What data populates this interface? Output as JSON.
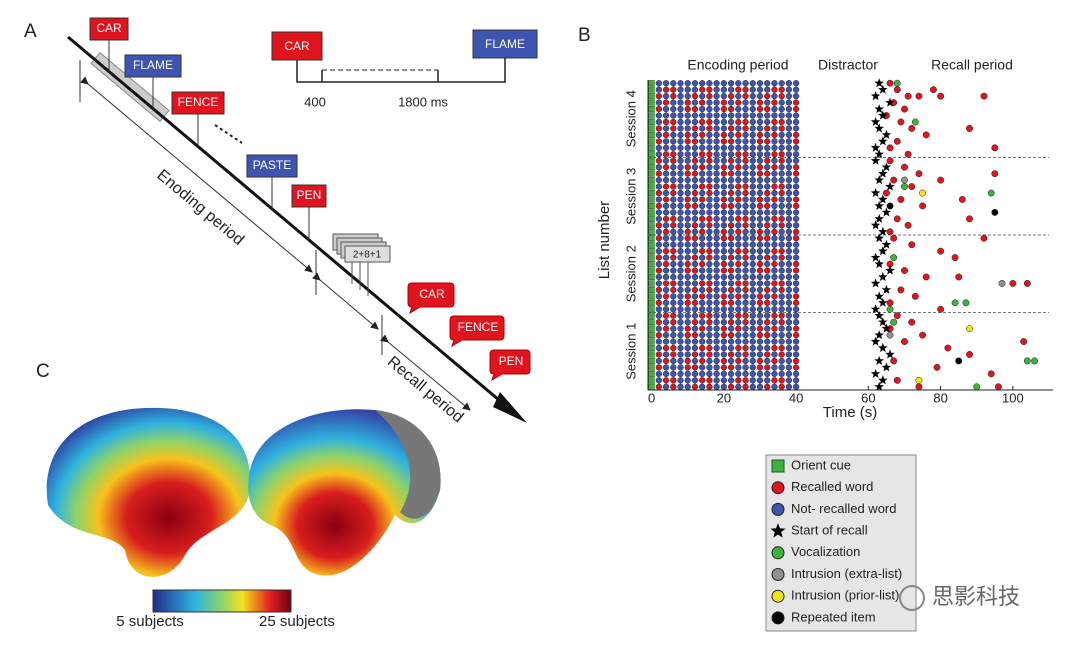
{
  "panel_a": {
    "label": "A",
    "timeline": {
      "word_1": "CAR",
      "word_2": "FLAME",
      "onset": "400",
      "interval": "1800 ms"
    },
    "encoding_words": [
      "CAR",
      "FLAME",
      "FENCE",
      "PASTE",
      "PEN"
    ],
    "encoding_label": "Enoding period",
    "distractor": "2+8+1",
    "recall_words": [
      "CAR",
      "FENCE",
      "PEN"
    ],
    "recall_label": "Recall period"
  },
  "panel_c": {
    "label": "C",
    "colorbar_low": "5 subjects",
    "colorbar_high": "25 subjects"
  },
  "watermark": "思影科技",
  "chart_data": {
    "type": "scatter",
    "panel_label": "B",
    "period_labels": [
      "Encoding period",
      "Distractor",
      "Recall period"
    ],
    "ylabel": "List number",
    "sessions": [
      "Session 1",
      "Session 2",
      "Session 3",
      "Session 4"
    ],
    "xlabel": "Time (s)",
    "xlim": [
      -1,
      110
    ],
    "xticks": [
      0,
      20,
      40,
      60,
      80,
      100
    ],
    "ylim": [
      0.5,
      48.5
    ],
    "series": [
      {
        "name": "Orient cue",
        "color": "#3cb43c",
        "marker": "square",
        "x": [
          0,
          0,
          0,
          0,
          0,
          0,
          0,
          0,
          0,
          0,
          0,
          0,
          0,
          0,
          0,
          0,
          0,
          0,
          0,
          0,
          0,
          0,
          0,
          0,
          0,
          0,
          0,
          0,
          0,
          0,
          0,
          0,
          0,
          0,
          0,
          0,
          0,
          0,
          0,
          0,
          0,
          0,
          0,
          0,
          0,
          0,
          0,
          0
        ],
        "values": [
          1,
          2,
          3,
          4,
          5,
          6,
          7,
          8,
          9,
          10,
          11,
          12,
          13,
          14,
          15,
          16,
          17,
          18,
          19,
          20,
          21,
          22,
          23,
          24,
          25,
          26,
          27,
          28,
          29,
          30,
          31,
          32,
          33,
          34,
          35,
          36,
          37,
          38,
          39,
          40,
          41,
          42,
          43,
          44,
          45,
          46,
          47,
          48
        ]
      },
      {
        "name": "Recalled word",
        "color": "#e0141e",
        "marker": "circle",
        "x": [
          66,
          68,
          71,
          67,
          70,
          74,
          78,
          80,
          65,
          69,
          72,
          76,
          68,
          66,
          71,
          88,
          92,
          95,
          66,
          70,
          74,
          67,
          72,
          65,
          69,
          75,
          80,
          86,
          95,
          68,
          71,
          66,
          88,
          67,
          72,
          80,
          84,
          66,
          70,
          76,
          92,
          85,
          100,
          104,
          69,
          73,
          66,
          80,
          68,
          72,
          66,
          75,
          70,
          82,
          88,
          67,
          79,
          94,
          103,
          68,
          74,
          96
        ],
        "values": [
          48,
          47,
          46,
          45,
          44,
          46,
          47,
          46,
          43,
          42,
          41,
          40,
          39,
          38,
          37,
          41,
          46,
          38,
          36,
          35,
          34,
          33,
          32,
          31,
          30,
          29,
          33,
          30,
          34,
          27,
          26,
          25,
          27,
          24,
          23,
          22,
          21,
          20,
          19,
          18,
          24,
          18,
          17,
          17,
          16,
          15,
          14,
          13,
          12,
          11,
          10,
          9,
          8,
          7,
          6,
          5,
          4,
          3,
          8,
          2,
          1,
          1
        ]
      },
      {
        "name": "Not- recalled word",
        "color": "#3d55b0",
        "marker": "circle",
        "x": [],
        "values": []
      },
      {
        "name": "Start of recall",
        "color": "#000000",
        "marker": "star",
        "x": [
          63,
          64,
          62,
          65,
          63,
          66,
          64,
          62,
          63,
          65,
          64,
          63,
          62,
          64,
          63,
          65,
          62,
          64,
          66,
          63,
          62,
          64,
          65,
          63,
          64,
          62,
          63,
          65,
          63,
          64,
          62,
          66,
          63,
          64,
          65,
          62,
          63,
          62,
          64,
          65,
          63,
          62,
          64,
          63,
          66,
          62,
          64,
          63
        ],
        "values": [
          1,
          2,
          3,
          4,
          5,
          6,
          7,
          8,
          9,
          10,
          11,
          12,
          13,
          14,
          15,
          16,
          17,
          18,
          19,
          20,
          21,
          22,
          23,
          24,
          25,
          26,
          27,
          28,
          29,
          30,
          31,
          32,
          33,
          34,
          35,
          36,
          37,
          38,
          39,
          40,
          41,
          42,
          43,
          44,
          45,
          46,
          47,
          48
        ]
      },
      {
        "name": "Vocalization",
        "color": "#3cb43c",
        "marker": "circle",
        "x": [
          68,
          73,
          70,
          94,
          67,
          84,
          87,
          67,
          104,
          106,
          90,
          66
        ],
        "values": [
          48,
          42,
          32,
          31,
          21,
          14,
          14,
          11,
          5,
          5,
          1,
          13
        ]
      },
      {
        "name": "Intrusion (extra-list)",
        "color": "#909090",
        "marker": "circle",
        "x": [
          70,
          97,
          66
        ],
        "values": [
          33,
          17,
          9
        ]
      },
      {
        "name": "Intrusion (prior-list)",
        "color": "#f2e21a",
        "marker": "circle",
        "x": [
          75,
          88,
          74
        ],
        "values": [
          31,
          10,
          2
        ]
      },
      {
        "name": "Repeated item",
        "color": "#000000",
        "marker": "circle",
        "x": [
          95,
          66,
          85
        ],
        "values": [
          28,
          29,
          5
        ]
      }
    ]
  }
}
